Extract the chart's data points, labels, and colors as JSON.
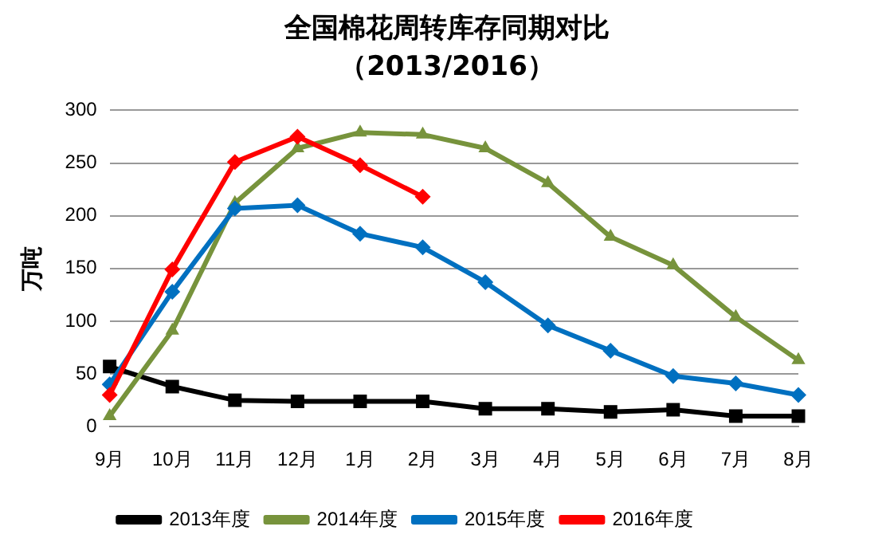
{
  "chart_data": {
    "type": "line",
    "title": "全国棉花周转库存同期对比",
    "subtitle": "（2013/2016）",
    "ylabel": "万吨",
    "categories": [
      "9月",
      "10月",
      "11月",
      "12月",
      "1月",
      "2月",
      "3月",
      "4月",
      "5月",
      "6月",
      "7月",
      "8月"
    ],
    "series": [
      {
        "name": "2013年度",
        "color": "#000000",
        "marker": "square",
        "values": [
          57,
          38,
          25,
          24,
          24,
          24,
          17,
          17,
          14,
          16,
          10,
          10
        ]
      },
      {
        "name": "2014年度",
        "color": "#77933c",
        "marker": "triangle",
        "values": [
          10,
          91,
          212,
          264,
          279,
          277,
          264,
          231,
          180,
          153,
          104,
          63
        ]
      },
      {
        "name": "2015年度",
        "color": "#0070c0",
        "marker": "diamond",
        "values": [
          40,
          128,
          207,
          210,
          183,
          170,
          137,
          96,
          72,
          48,
          41,
          30
        ]
      },
      {
        "name": "2016年度",
        "color": "#ff0000",
        "marker": "diamond",
        "values": [
          30,
          149,
          251,
          275,
          248,
          218,
          null,
          null,
          null,
          null,
          null,
          null
        ]
      }
    ],
    "ylim": [
      0,
      300
    ],
    "yticks": [
      0,
      50,
      100,
      150,
      200,
      250,
      300
    ],
    "grid": "y",
    "legend": "bottom"
  }
}
